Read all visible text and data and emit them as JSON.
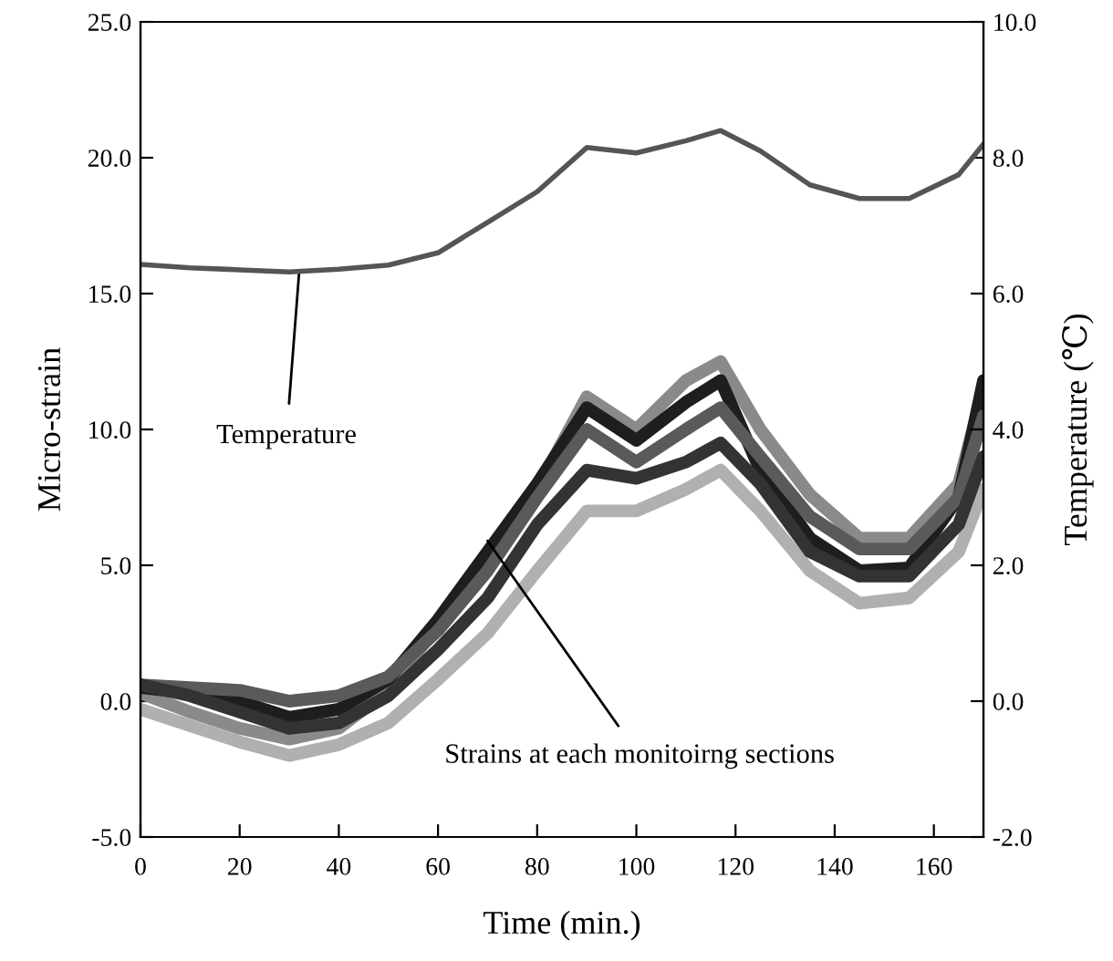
{
  "chart_data": {
    "type": "line",
    "xlabel": "Time (min.)",
    "ylabel": "Micro-strain",
    "y2label": "Temperature (℃)",
    "x": [
      0,
      10,
      20,
      30,
      40,
      50,
      60,
      70,
      80,
      90,
      100,
      110,
      117,
      125,
      135,
      145,
      155,
      165,
      170
    ],
    "series": [
      {
        "color": "#b0b0b0",
        "values": [
          -0.3,
          -0.9,
          -1.5,
          -2.0,
          -1.6,
          -0.8,
          0.8,
          2.5,
          4.8,
          7.0,
          7.0,
          7.8,
          8.5,
          7.0,
          4.8,
          3.6,
          3.8,
          5.5,
          7.8
        ]
      },
      {
        "color": "#8a8a8a",
        "values": [
          0.3,
          -0.4,
          -1.0,
          -1.4,
          -1.0,
          0.4,
          2.8,
          5.3,
          7.8,
          11.2,
          10.0,
          11.8,
          12.5,
          10.0,
          7.6,
          6.0,
          6.0,
          8.0,
          11.5
        ]
      },
      {
        "color": "#1e1e1e",
        "values": [
          0.5,
          0.3,
          0.0,
          -0.6,
          -0.3,
          0.8,
          3.0,
          5.5,
          8.0,
          10.8,
          9.6,
          11.0,
          11.8,
          8.5,
          6.0,
          4.8,
          4.9,
          7.5,
          11.8
        ]
      },
      {
        "color": "#5a5a5a",
        "values": [
          0.6,
          0.5,
          0.4,
          0.0,
          0.2,
          0.9,
          2.6,
          4.8,
          7.5,
          10.0,
          8.8,
          10.0,
          10.8,
          9.0,
          6.8,
          5.6,
          5.6,
          7.5,
          10.5
        ]
      },
      {
        "color": "#333333",
        "values": [
          0.6,
          0.2,
          -0.4,
          -1.0,
          -0.8,
          0.2,
          1.9,
          3.8,
          6.5,
          8.5,
          8.2,
          8.8,
          9.5,
          8.0,
          5.5,
          4.6,
          4.6,
          6.5,
          9.0
        ]
      },
      {
        "color": "#555555",
        "axis": "y2",
        "values": [
          6.43,
          6.38,
          6.35,
          6.32,
          6.36,
          6.42,
          6.6,
          7.05,
          7.5,
          8.15,
          8.07,
          8.25,
          8.4,
          8.1,
          7.6,
          7.4,
          7.4,
          7.75,
          8.2
        ]
      }
    ],
    "xlim": [
      0,
      170
    ],
    "xticks": [
      0,
      20,
      40,
      60,
      80,
      100,
      120,
      140,
      160
    ],
    "ylim": [
      -5,
      25
    ],
    "yticks": [
      {
        "value": -5,
        "label": "-5.0"
      },
      {
        "value": 0,
        "label": "0.0"
      },
      {
        "value": 5,
        "label": "5.0"
      },
      {
        "value": 10,
        "label": "10.0"
      },
      {
        "value": 15,
        "label": "15.0"
      },
      {
        "value": 20,
        "label": "20.0"
      },
      {
        "value": 25,
        "label": "25.0"
      }
    ],
    "y2lim": [
      -2,
      10
    ],
    "y2ticks": [
      {
        "value": -2,
        "label": "-2.0"
      },
      {
        "value": 0,
        "label": "0.0"
      },
      {
        "value": 2,
        "label": "2.0"
      },
      {
        "value": 4,
        "label": "4.0"
      },
      {
        "value": 6,
        "label": "6.0"
      },
      {
        "value": 8,
        "label": "8.0"
      },
      {
        "value": 10,
        "label": "10.0"
      }
    ],
    "annotations": [
      {
        "text": "Temperature",
        "x": 32,
        "y": 15.8
      },
      {
        "text": "Strains at each monitoirng sections",
        "x": 70,
        "y": 5.9
      }
    ],
    "grid": false,
    "legend": false
  }
}
